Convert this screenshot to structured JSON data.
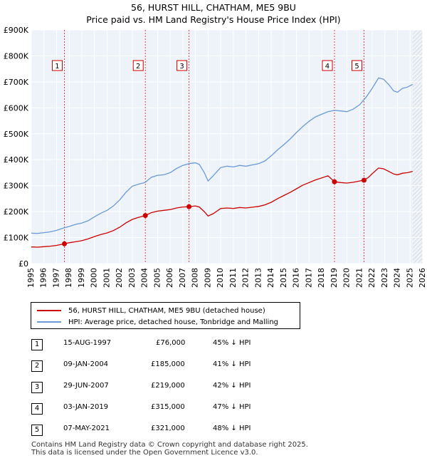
{
  "title": "56, HURST HILL, CHATHAM, ME5 9BU",
  "subtitle": "Price paid vs. HM Land Registry's House Price Index (HPI)",
  "legend": [
    {
      "label": "56, HURST HILL, CHATHAM, ME5 9BU (detached house)",
      "color": "#cc0000"
    },
    {
      "label": "HPI: Average price, detached house, Tonbridge and Malling",
      "color": "#6a9bd8"
    }
  ],
  "transactions": [
    {
      "num": "1",
      "date": "15-AUG-1997",
      "price": "£76,000",
      "hpi": "45% ↓ HPI"
    },
    {
      "num": "2",
      "date": "09-JAN-2004",
      "price": "£185,000",
      "hpi": "41% ↓ HPI"
    },
    {
      "num": "3",
      "date": "29-JUN-2007",
      "price": "£219,000",
      "hpi": "42% ↓ HPI"
    },
    {
      "num": "4",
      "date": "03-JAN-2019",
      "price": "£315,000",
      "hpi": "47% ↓ HPI"
    },
    {
      "num": "5",
      "date": "07-MAY-2021",
      "price": "£321,000",
      "hpi": "48% ↓ HPI"
    }
  ],
  "footer": [
    "Contains HM Land Registry data © Crown copyright and database right 2025.",
    "This data is licensed under the Open Government Licence v3.0."
  ],
  "chart_data": {
    "type": "line",
    "title": "56, HURST HILL, CHATHAM, ME5 9BU",
    "xlim": [
      1995,
      2026
    ],
    "ylim": [
      0,
      900000
    ],
    "xticks": [
      1995,
      1996,
      1997,
      1998,
      1999,
      2000,
      2001,
      2002,
      2003,
      2004,
      2005,
      2006,
      2007,
      2008,
      2009,
      2010,
      2011,
      2012,
      2013,
      2014,
      2015,
      2016,
      2017,
      2018,
      2019,
      2020,
      2021,
      2022,
      2023,
      2024,
      2025,
      2026
    ],
    "yticks": [
      {
        "value": 0,
        "label": "£0"
      },
      {
        "value": 100000,
        "label": "£100K"
      },
      {
        "value": 200000,
        "label": "£200K"
      },
      {
        "value": 300000,
        "label": "£300K"
      },
      {
        "value": 400000,
        "label": "£400K"
      },
      {
        "value": 500000,
        "label": "£500K"
      },
      {
        "value": 600000,
        "label": "£600K"
      },
      {
        "value": 700000,
        "label": "£700K"
      },
      {
        "value": 800000,
        "label": "£800K"
      },
      {
        "value": 900000,
        "label": "£900K"
      }
    ],
    "data_end": 2025.2,
    "series": [
      {
        "name": "HPI: Average price, detached house, Tonbridge and Malling",
        "color": "#6a9bd8",
        "points": [
          [
            1995.0,
            117000
          ],
          [
            1995.5,
            116000
          ],
          [
            1996.0,
            119000
          ],
          [
            1996.5,
            122000
          ],
          [
            1997.0,
            128000
          ],
          [
            1997.5,
            136000
          ],
          [
            1998.0,
            143000
          ],
          [
            1998.5,
            151000
          ],
          [
            1999.0,
            156000
          ],
          [
            1999.5,
            165000
          ],
          [
            2000.0,
            180000
          ],
          [
            2000.5,
            194000
          ],
          [
            2001.0,
            205000
          ],
          [
            2001.5,
            222000
          ],
          [
            2002.0,
            245000
          ],
          [
            2002.5,
            275000
          ],
          [
            2003.0,
            298000
          ],
          [
            2003.5,
            306000
          ],
          [
            2004.0,
            312000
          ],
          [
            2004.5,
            332000
          ],
          [
            2005.0,
            340000
          ],
          [
            2005.5,
            342000
          ],
          [
            2006.0,
            350000
          ],
          [
            2006.5,
            366000
          ],
          [
            2007.0,
            378000
          ],
          [
            2007.5,
            385000
          ],
          [
            2008.0,
            388000
          ],
          [
            2008.3,
            382000
          ],
          [
            2008.7,
            350000
          ],
          [
            2009.0,
            318000
          ],
          [
            2009.4,
            338000
          ],
          [
            2010.0,
            370000
          ],
          [
            2010.5,
            375000
          ],
          [
            2011.0,
            372000
          ],
          [
            2011.5,
            378000
          ],
          [
            2012.0,
            375000
          ],
          [
            2012.5,
            380000
          ],
          [
            2013.0,
            385000
          ],
          [
            2013.5,
            395000
          ],
          [
            2014.0,
            415000
          ],
          [
            2014.5,
            438000
          ],
          [
            2015.0,
            458000
          ],
          [
            2015.5,
            480000
          ],
          [
            2016.0,
            505000
          ],
          [
            2016.5,
            528000
          ],
          [
            2017.0,
            548000
          ],
          [
            2017.5,
            565000
          ],
          [
            2018.0,
            575000
          ],
          [
            2018.5,
            585000
          ],
          [
            2019.0,
            590000
          ],
          [
            2019.5,
            588000
          ],
          [
            2020.0,
            585000
          ],
          [
            2020.5,
            595000
          ],
          [
            2021.0,
            612000
          ],
          [
            2021.5,
            640000
          ],
          [
            2022.0,
            675000
          ],
          [
            2022.5,
            715000
          ],
          [
            2022.9,
            710000
          ],
          [
            2023.3,
            690000
          ],
          [
            2023.7,
            665000
          ],
          [
            2024.0,
            660000
          ],
          [
            2024.4,
            675000
          ],
          [
            2024.8,
            680000
          ],
          [
            2025.2,
            690000
          ]
        ]
      },
      {
        "name": "56, HURST HILL, CHATHAM, ME5 9BU (detached house)",
        "color": "#cc0000",
        "points": [
          [
            1995.0,
            64000
          ],
          [
            1995.5,
            63000
          ],
          [
            1996.0,
            65000
          ],
          [
            1996.5,
            67000
          ],
          [
            1997.0,
            70000
          ],
          [
            1997.62,
            76000
          ],
          [
            1998.0,
            80000
          ],
          [
            1998.5,
            84000
          ],
          [
            1999.0,
            88000
          ],
          [
            1999.5,
            95000
          ],
          [
            2000.0,
            104000
          ],
          [
            2000.5,
            112000
          ],
          [
            2001.0,
            118000
          ],
          [
            2001.5,
            127000
          ],
          [
            2002.0,
            140000
          ],
          [
            2002.5,
            157000
          ],
          [
            2003.0,
            170000
          ],
          [
            2003.5,
            178000
          ],
          [
            2004.03,
            185000
          ],
          [
            2004.5,
            196000
          ],
          [
            2005.0,
            202000
          ],
          [
            2005.5,
            205000
          ],
          [
            2006.0,
            208000
          ],
          [
            2006.5,
            214000
          ],
          [
            2007.0,
            218000
          ],
          [
            2007.49,
            219000
          ],
          [
            2008.0,
            222000
          ],
          [
            2008.3,
            218000
          ],
          [
            2008.7,
            200000
          ],
          [
            2009.0,
            183000
          ],
          [
            2009.4,
            192000
          ],
          [
            2010.0,
            212000
          ],
          [
            2010.5,
            214000
          ],
          [
            2011.0,
            212000
          ],
          [
            2011.5,
            216000
          ],
          [
            2012.0,
            214000
          ],
          [
            2012.5,
            217000
          ],
          [
            2013.0,
            220000
          ],
          [
            2013.5,
            226000
          ],
          [
            2014.0,
            236000
          ],
          [
            2014.5,
            250000
          ],
          [
            2015.0,
            262000
          ],
          [
            2015.5,
            274000
          ],
          [
            2016.0,
            288000
          ],
          [
            2016.5,
            302000
          ],
          [
            2017.0,
            312000
          ],
          [
            2017.5,
            322000
          ],
          [
            2018.0,
            330000
          ],
          [
            2018.5,
            338000
          ],
          [
            2019.01,
            315000
          ],
          [
            2019.5,
            312000
          ],
          [
            2020.0,
            310000
          ],
          [
            2020.5,
            313000
          ],
          [
            2021.0,
            318000
          ],
          [
            2021.35,
            321000
          ],
          [
            2021.7,
            332000
          ],
          [
            2022.0,
            346000
          ],
          [
            2022.5,
            368000
          ],
          [
            2022.9,
            365000
          ],
          [
            2023.3,
            355000
          ],
          [
            2023.7,
            345000
          ],
          [
            2024.0,
            342000
          ],
          [
            2024.4,
            348000
          ],
          [
            2024.8,
            350000
          ],
          [
            2025.2,
            355000
          ]
        ]
      }
    ],
    "sales": [
      {
        "num": "1",
        "year": 1997.62,
        "price": 76000
      },
      {
        "num": "2",
        "year": 2004.03,
        "price": 185000
      },
      {
        "num": "3",
        "year": 2007.49,
        "price": 219000
      },
      {
        "num": "4",
        "year": 2019.01,
        "price": 315000
      },
      {
        "num": "5",
        "year": 2021.35,
        "price": 321000
      }
    ]
  }
}
